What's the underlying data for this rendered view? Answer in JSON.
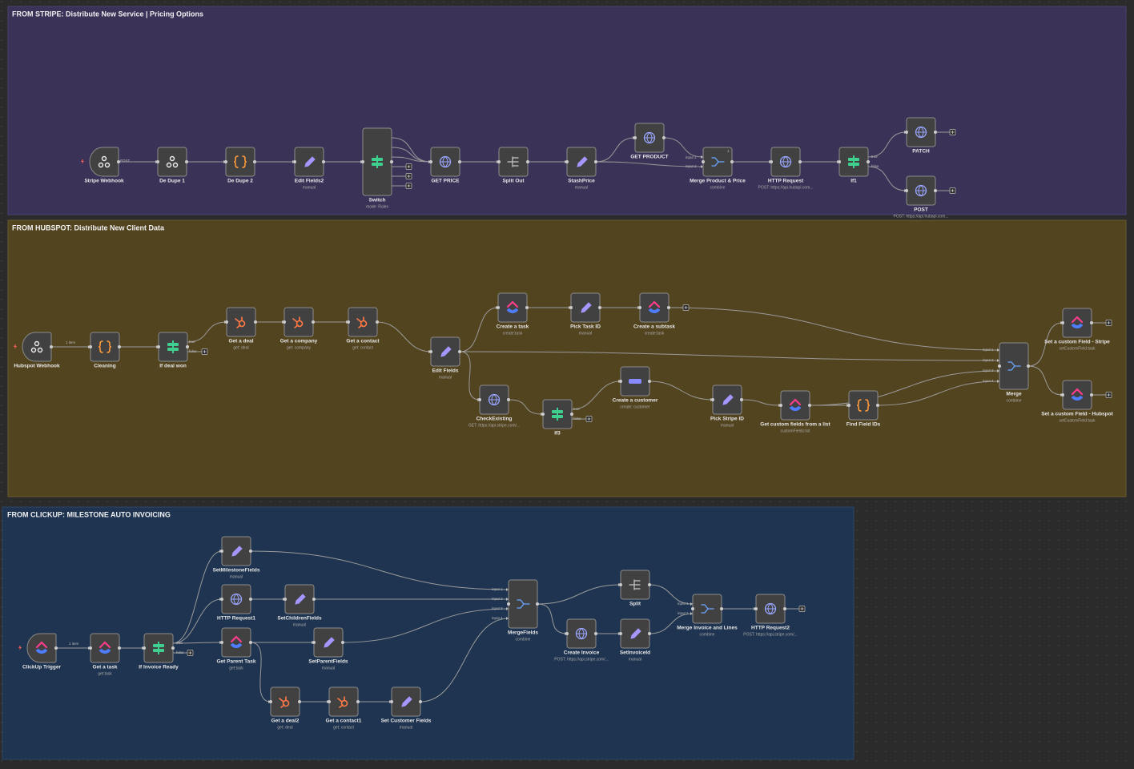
{
  "sections": [
    {
      "title": "FROM STRIPE: Distribute New Service | Pricing Options",
      "nodes": [
        {
          "label": "Stripe Webhook"
        },
        {
          "label": "De Dupe 1"
        },
        {
          "label": "De Dupe 2"
        },
        {
          "label": "Edit Fields2",
          "subtitle": "manual"
        },
        {
          "label": "Switch",
          "subtitle": "mode: Rules"
        },
        {
          "label": "GET PRICE"
        },
        {
          "label": "Split Out"
        },
        {
          "label": "StashPrice",
          "subtitle": "manual"
        },
        {
          "label": "GET PRODUCT"
        },
        {
          "label": "Merge Product & Price",
          "subtitle": "combine",
          "badge": "1"
        },
        {
          "label": "HTTP Request",
          "subtitle": "POST: https://api.hubapi.com..."
        },
        {
          "label": "If1"
        },
        {
          "label": "PATCH"
        },
        {
          "label": "POST",
          "subtitle": "POST: https://api.hubapi.com..."
        }
      ],
      "port_labels": [
        "POST",
        "true",
        "false",
        "input 1",
        "input 2"
      ]
    },
    {
      "title": "FROM HUBSPOT: Distribute New Client Data",
      "nodes": [
        {
          "label": "Hubspot Webhook"
        },
        {
          "label": "Cleaning"
        },
        {
          "label": "If deal won"
        },
        {
          "label": "Get a deal",
          "subtitle": "get: deal"
        },
        {
          "label": "Get a company",
          "subtitle": "get: company"
        },
        {
          "label": "Get a contact",
          "subtitle": "get: contact"
        },
        {
          "label": "Edit Fields",
          "subtitle": "manual"
        },
        {
          "label": "Create a task",
          "subtitle": "create:task"
        },
        {
          "label": "Pick Task ID",
          "subtitle": "manual"
        },
        {
          "label": "Create a subtask",
          "subtitle": "create:task"
        },
        {
          "label": "CheckExisting",
          "subtitle": "GET: https://api.stripe.com/..."
        },
        {
          "label": "If3"
        },
        {
          "label": "Create a customer",
          "subtitle": "create: customer"
        },
        {
          "label": "Pick Stripe ID",
          "subtitle": "manual"
        },
        {
          "label": "Get custom fields from a list",
          "subtitle": "customFields:list"
        },
        {
          "label": "Find Field IDs"
        },
        {
          "label": "Merge",
          "subtitle": "combine"
        },
        {
          "label": "Set a custom Field - Stripe",
          "subtitle": "setCustomField:task"
        },
        {
          "label": "Set a custom Field - Hubspot",
          "subtitle": "setCustomField:task"
        }
      ],
      "port_labels": [
        "1 item",
        "true",
        "false",
        "true",
        "false",
        "input 1",
        "input 2",
        "input 3",
        "input 4"
      ]
    },
    {
      "title": "FROM CLICKUP: MILESTONE AUTO INVOICING",
      "nodes": [
        {
          "label": "ClickUp Trigger"
        },
        {
          "label": "Get a task",
          "subtitle": "get:task"
        },
        {
          "label": "If Invoice Ready"
        },
        {
          "label": "SetMilestoneFields",
          "subtitle": "manual"
        },
        {
          "label": "HTTP Request1"
        },
        {
          "label": "SetChildrenFields",
          "subtitle": "manual"
        },
        {
          "label": "Get Parent Task",
          "subtitle": "get:task"
        },
        {
          "label": "SetParentFields",
          "subtitle": "manual"
        },
        {
          "label": "Get a deal2",
          "subtitle": "get: deal"
        },
        {
          "label": "Get a contact1",
          "subtitle": "get: contact"
        },
        {
          "label": "Set Customer Fields",
          "subtitle": "manual"
        },
        {
          "label": "MergeFields",
          "subtitle": "combine"
        },
        {
          "label": "Split"
        },
        {
          "label": "Create Invoice",
          "subtitle": "POST: https://api.stripe.com/..."
        },
        {
          "label": "SetInvoiceId",
          "subtitle": "manual"
        },
        {
          "label": "Merge Invoice and Lines",
          "subtitle": "combine"
        },
        {
          "label": "HTTP Request2",
          "subtitle": "POST: https://api.stripe.com/..."
        }
      ],
      "port_labels": [
        "1 item",
        "true",
        "false",
        "input 1",
        "input 2",
        "input 3",
        "input 4",
        "input 1",
        "input 2"
      ]
    }
  ]
}
